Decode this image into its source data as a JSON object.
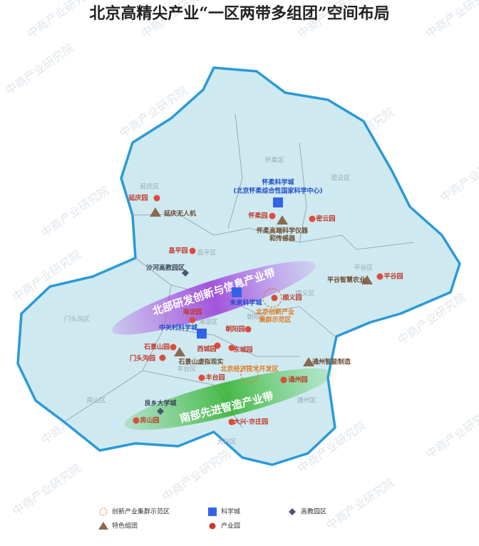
{
  "title": "北京高精尖产业“一区两带多组团”空间布局",
  "watermark": "中商产业研究院",
  "districts": [
    {
      "label": "延庆区"
    },
    {
      "label": "怀柔区"
    },
    {
      "label": "密云区"
    },
    {
      "label": "昌平区"
    },
    {
      "label": "平谷区"
    },
    {
      "label": "顺义区"
    },
    {
      "label": "门头沟区"
    },
    {
      "label": "海淀区"
    },
    {
      "label": "朝阳区"
    },
    {
      "label": "丰台区"
    },
    {
      "label": "房山区"
    },
    {
      "label": "大兴区"
    },
    {
      "label": "通州区"
    }
  ],
  "bands": [
    {
      "label": "北部研发创新与信息产业带"
    },
    {
      "label": "南部先进智造产业带"
    }
  ],
  "features": [
    {
      "kind": "park",
      "lines": [
        "延庆园"
      ]
    },
    {
      "kind": "special",
      "lines": [
        "延庆无人机"
      ]
    },
    {
      "kind": "science",
      "lines": [
        "怀柔科学城"
      ]
    },
    {
      "kind": "note",
      "lines": [
        "(北京怀柔综合性国家科学中心)"
      ]
    },
    {
      "kind": "park",
      "lines": [
        "怀柔园"
      ]
    },
    {
      "kind": "park",
      "lines": [
        "密云园"
      ]
    },
    {
      "kind": "special",
      "lines": [
        "怀柔高端科学仪器",
        "和传感器"
      ]
    },
    {
      "kind": "park",
      "lines": [
        "昌平园"
      ]
    },
    {
      "kind": "university",
      "lines": [
        "沙河高教园区"
      ]
    },
    {
      "kind": "special",
      "lines": [
        "平谷智慧农业"
      ]
    },
    {
      "kind": "park",
      "lines": [
        "平谷园"
      ]
    },
    {
      "kind": "science",
      "lines": [
        "未来科学城"
      ]
    },
    {
      "kind": "park",
      "lines": [
        "顺义园"
      ]
    },
    {
      "kind": "cluster",
      "lines": [
        "北京创新产业",
        "集群示范区"
      ]
    },
    {
      "kind": "park",
      "lines": [
        "海淀园"
      ]
    },
    {
      "kind": "science",
      "lines": [
        "中关村科学城"
      ]
    },
    {
      "kind": "park",
      "lines": [
        "朝阳园"
      ]
    },
    {
      "kind": "park",
      "lines": [
        "石景山园"
      ]
    },
    {
      "kind": "park",
      "lines": [
        "西城园"
      ]
    },
    {
      "kind": "park",
      "lines": [
        "东城园"
      ]
    },
    {
      "kind": "park",
      "lines": [
        "门头沟园"
      ]
    },
    {
      "kind": "special",
      "lines": [
        "石景山虚拟现实"
      ]
    },
    {
      "kind": "cluster",
      "lines": [
        "北京经济技术开发区"
      ]
    },
    {
      "kind": "park",
      "lines": [
        "通州园"
      ]
    },
    {
      "kind": "special",
      "lines": [
        "通州智能制造"
      ]
    },
    {
      "kind": "park",
      "lines": [
        "丰台园"
      ]
    },
    {
      "kind": "university",
      "lines": [
        "良乡大学城"
      ]
    },
    {
      "kind": "park",
      "lines": [
        "房山园"
      ]
    },
    {
      "kind": "park",
      "lines": [
        "大兴·亦庄园"
      ]
    }
  ],
  "legend": [
    {
      "kind": "cluster",
      "label": "创新产业集群示范区"
    },
    {
      "kind": "science",
      "label": "科学城"
    },
    {
      "kind": "university",
      "label": "高教园区"
    },
    {
      "kind": "special",
      "label": "特色组团"
    },
    {
      "kind": "park",
      "label": "产业园"
    }
  ]
}
